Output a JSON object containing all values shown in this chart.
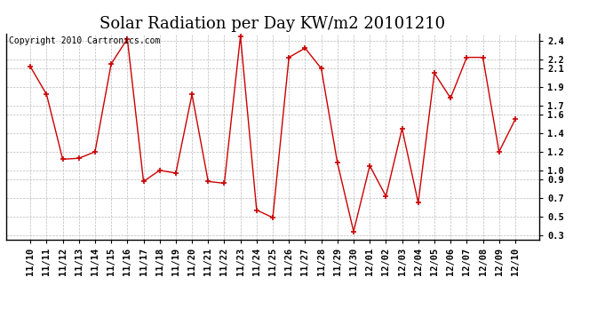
{
  "title": "Solar Radiation per Day KW/m2 20101210",
  "copyright_text": "Copyright 2010 Cartronics.com",
  "dates": [
    "11/10",
    "11/11",
    "11/12",
    "11/13",
    "11/14",
    "11/15",
    "11/16",
    "11/17",
    "11/18",
    "11/19",
    "11/20",
    "11/21",
    "11/22",
    "11/23",
    "11/24",
    "11/25",
    "11/26",
    "11/27",
    "11/28",
    "11/29",
    "11/30",
    "12/01",
    "12/02",
    "12/03",
    "12/04",
    "12/05",
    "12/06",
    "12/07",
    "12/08",
    "12/09",
    "12/10"
  ],
  "values": [
    2.12,
    1.82,
    1.12,
    1.13,
    1.2,
    2.15,
    2.42,
    0.88,
    1.0,
    0.97,
    1.82,
    0.88,
    0.86,
    2.45,
    0.57,
    0.49,
    2.22,
    2.32,
    2.1,
    1.08,
    0.34,
    1.05,
    0.72,
    1.45,
    0.65,
    2.05,
    1.78,
    2.22,
    2.22,
    1.2,
    1.55
  ],
  "line_color": "#cc0000",
  "marker": "+",
  "marker_color": "#cc0000",
  "ylim": [
    0.25,
    2.48
  ],
  "yticks": [
    0.3,
    0.5,
    0.7,
    0.9,
    1.0,
    1.2,
    1.4,
    1.6,
    1.7,
    1.9,
    2.1,
    2.2,
    2.4
  ],
  "bg_color": "#ffffff",
  "grid_color": "#bbbbbb",
  "title_fontsize": 13,
  "label_fontsize": 7.5,
  "copyright_fontsize": 7
}
